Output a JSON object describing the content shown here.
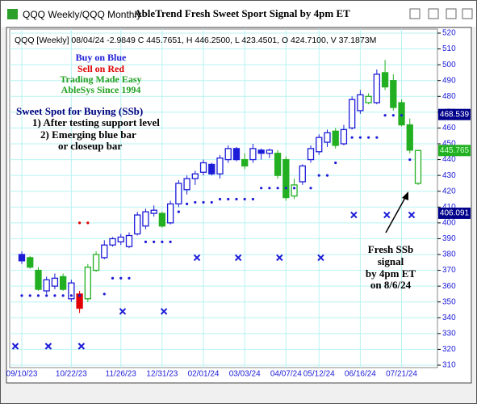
{
  "window_title": "QQQ Weekly/QQQ Monthly",
  "chart_data": {
    "type": "candlestick",
    "title": "AbleTrend Fresh Sweet Sport Signal by 4pm ET",
    "info": "QQQ [Weekly] 08/04/24  -2.9849 C 445.7651, H 446.2500, L 423.4501, O 424.7100, V 37.1873M",
    "categories": [
      "09/10/23",
      null,
      null,
      null,
      null,
      null,
      "10/22/23",
      null,
      null,
      null,
      null,
      null,
      "11/26/23",
      null,
      null,
      null,
      null,
      "12/31/23",
      null,
      null,
      null,
      null,
      "02/01/24",
      null,
      null,
      null,
      null,
      "03/03/24",
      null,
      null,
      null,
      null,
      "04/07/24",
      null,
      null,
      null,
      "05/12/24",
      null,
      null,
      null,
      null,
      "06/16/24",
      null,
      null,
      null,
      null,
      "07/21/24",
      null,
      null
    ],
    "open": [
      380,
      378,
      370,
      357,
      360,
      366,
      352,
      355,
      352,
      370,
      378,
      386,
      388,
      385,
      393,
      398,
      406,
      406,
      400,
      412,
      421,
      428,
      432,
      437,
      431,
      440,
      447,
      440,
      440,
      446,
      444,
      444,
      440,
      417,
      426,
      440,
      445,
      451,
      458,
      450,
      460,
      471,
      476,
      476,
      495,
      490,
      476,
      462,
      425
    ],
    "high": [
      382,
      379,
      372,
      366,
      368,
      368,
      364,
      357,
      374,
      382,
      389,
      391,
      393,
      394,
      407,
      409,
      411,
      407,
      414,
      427,
      430,
      433,
      440,
      438,
      443,
      449,
      448,
      444,
      450,
      447,
      447,
      446,
      442,
      428,
      437,
      449,
      456,
      459,
      460,
      462,
      480,
      484,
      482,
      497,
      503,
      494,
      478,
      466,
      446
    ],
    "low": [
      374,
      371,
      357,
      355,
      358,
      357,
      350,
      343,
      350,
      369,
      377,
      385,
      386,
      384,
      392,
      396,
      404,
      397,
      399,
      410,
      418,
      424,
      430,
      430,
      428,
      438,
      439,
      434,
      438,
      440,
      441,
      428,
      414,
      415,
      424,
      438,
      443,
      448,
      447,
      449,
      459,
      469,
      475,
      475,
      484,
      471,
      461,
      444,
      424
    ],
    "close": [
      376,
      372,
      358,
      364,
      365,
      358,
      362,
      346,
      372,
      380,
      386,
      390,
      391,
      392,
      405,
      407,
      408,
      398,
      412,
      425,
      428,
      431,
      438,
      431,
      441,
      447,
      440,
      436,
      447,
      444,
      446,
      430,
      416,
      424,
      436,
      447,
      454,
      457,
      449,
      459,
      478,
      481,
      480,
      494,
      486,
      473,
      462,
      446,
      445.77
    ],
    "colors": [
      "#1c1cd8",
      "#22b022",
      "#22b022",
      "#1c1cd8",
      "#1c1cd8",
      "#22b022",
      "#1c1cd8",
      "#e00000",
      "#22b022",
      "#22b022",
      "#1c1cd8",
      "#1c1cd8",
      "#1c1cd8",
      "#1c1cd8",
      "#1c1cd8",
      "#1c1cd8",
      "#1c1cd8",
      "#22b022",
      "#1c1cd8",
      "#1c1cd8",
      "#1c1cd8",
      "#1c1cd8",
      "#1c1cd8",
      "#1c1cd8",
      "#1c1cd8",
      "#1c1cd8",
      "#1c1cd8",
      "#22b022",
      "#1c1cd8",
      "#1c1cd8",
      "#1c1cd8",
      "#22b022",
      "#22b022",
      "#22b022",
      "#1c1cd8",
      "#1c1cd8",
      "#1c1cd8",
      "#1c1cd8",
      "#22b022",
      "#1c1cd8",
      "#1c1cd8",
      "#1c1cd8",
      "#22b022",
      "#1c1cd8",
      "#22b022",
      "#22b022",
      "#22b022",
      "#22b022",
      "#22b022"
    ],
    "support_dots": {
      "color": "#1c1cd8",
      "values": [
        354,
        354,
        354,
        354,
        354,
        354,
        354,
        354,
        null,
        null,
        355,
        365,
        365,
        365,
        null,
        388,
        388,
        388,
        388,
        407,
        412,
        413,
        413,
        413,
        415,
        415,
        415,
        415,
        415,
        422,
        422,
        422,
        422,
        422,
        null,
        422,
        430,
        430,
        438,
        null,
        454,
        454,
        454,
        454,
        468,
        468,
        468,
        440,
        null
      ]
    },
    "stop_dots": {
      "color": "#e00000",
      "values": [
        null,
        null,
        null,
        null,
        null,
        null,
        null,
        400,
        400,
        null,
        null,
        null,
        null,
        null,
        null,
        null,
        null,
        null,
        null,
        null,
        null,
        null,
        null,
        null,
        null,
        null,
        null,
        null,
        null,
        null,
        null,
        null,
        null,
        null,
        null,
        null,
        null,
        null,
        null,
        null,
        null,
        null,
        null,
        null,
        null,
        null,
        null,
        null,
        null
      ]
    },
    "x_markers": {
      "color": "#1c1cd8",
      "values": [
        322,
        null,
        null,
        null,
        322,
        null,
        null,
        null,
        322,
        null,
        null,
        null,
        null,
        344,
        null,
        null,
        null,
        null,
        344,
        null,
        null,
        null,
        378,
        null,
        null,
        null,
        null,
        378,
        null,
        null,
        null,
        null,
        378,
        null,
        null,
        null,
        null,
        378,
        null,
        null,
        null,
        405,
        null,
        null,
        null,
        405,
        null,
        null,
        405
      ]
    },
    "price_tags": {
      "values": [
        468.539,
        445.765,
        406.091
      ],
      "colors": [
        "#00008b",
        "#22b022",
        "#00008b"
      ]
    },
    "ylim": [
      310,
      520
    ],
    "yticks": [
      310,
      320,
      330,
      340,
      350,
      360,
      370,
      380,
      390,
      400,
      410,
      420,
      430,
      440,
      450,
      460,
      470,
      480,
      490,
      500,
      510,
      520
    ],
    "grid": true,
    "annotations": [
      {
        "text": "Buy on Blue",
        "color": "#1c1cd8"
      },
      {
        "text": "Sell on Red",
        "color": "#e00000"
      },
      {
        "text": "Trading Made Easy",
        "color": "#22a022"
      },
      {
        "text": "AbleSys Since 1994",
        "color": "#22a022"
      },
      {
        "text": "Sweet Spot for Buying (SSb)",
        "color": "#000080"
      },
      {
        "text": "1) After testing support level",
        "color": "#000000"
      },
      {
        "text": "2) Emerging blue bar",
        "color": "#000000"
      },
      {
        "text": "or closeup bar",
        "color": "#000000"
      },
      {
        "text": "Fresh SSb",
        "color": "#000000"
      },
      {
        "text": "signal",
        "color": "#000000"
      },
      {
        "text": "by 4pm ET",
        "color": "#000000"
      },
      {
        "text": "on 8/6/24",
        "color": "#000000"
      }
    ]
  }
}
